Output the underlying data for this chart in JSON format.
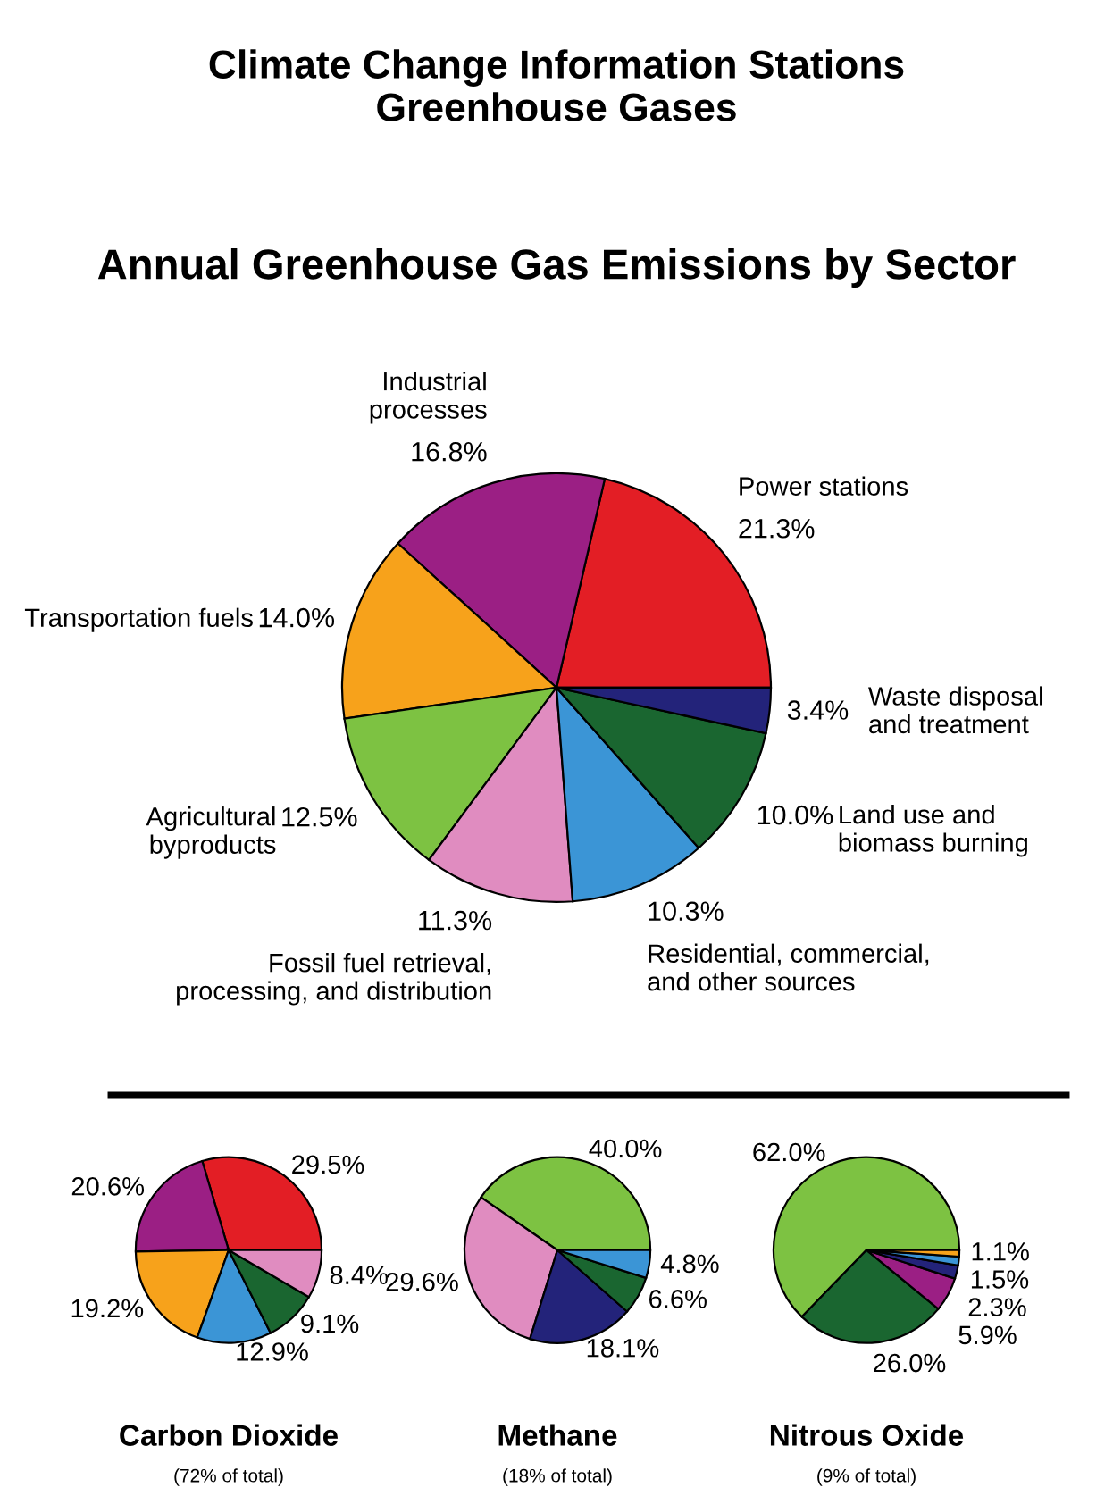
{
  "chart_data": [
    {
      "type": "pie",
      "title": "Climate Change Information Stations\nGreenhouse Gases",
      "subtitle": "Annual Greenhouse Gas Emissions by Sector",
      "categories": [
        "Power stations",
        "Industrial\nprocesses",
        "Transportation fuels",
        "Agricultural\nbyproducts",
        "Fossil fuel retrieval,\nprocessing, and distribution",
        "Residential, commercial,\nand other sources",
        "Land use and\nbiomass burning",
        "Waste disposal\nand treatment"
      ],
      "values": [
        21.3,
        16.8,
        14.0,
        12.5,
        11.3,
        10.3,
        10.0,
        3.4
      ],
      "value_labels": [
        "21.3%",
        "16.8%",
        "14.0%",
        "12.5%",
        "11.3%",
        "10.3%",
        "10.0%",
        "3.4%"
      ],
      "colors": [
        "#e31e25",
        "#9b1f84",
        "#f7a21b",
        "#7dc242",
        "#e08cc0",
        "#3b95d6",
        "#1a6630",
        "#23237a"
      ]
    },
    {
      "type": "pie",
      "title": "Carbon Dioxide",
      "subtitle": "(72% of total)",
      "categories": [
        null,
        null,
        null,
        null,
        null,
        null
      ],
      "values": [
        29.5,
        20.6,
        19.2,
        12.9,
        9.1,
        8.4
      ],
      "value_labels": [
        "29.5%",
        "20.6%",
        "19.2%",
        "12.9%",
        "9.1%",
        "8.4%"
      ],
      "colors": [
        "#e31e25",
        "#9b1f84",
        "#f7a21b",
        "#3b95d6",
        "#1a6630",
        "#e08cc0"
      ]
    },
    {
      "type": "pie",
      "title": "Methane",
      "subtitle": "(18% of total)",
      "categories": [
        null,
        null,
        null,
        null,
        null
      ],
      "values": [
        40.0,
        29.6,
        18.1,
        6.6,
        4.8
      ],
      "value_labels": [
        "40.0%",
        "29.6%",
        "18.1%",
        "6.6%",
        "4.8%"
      ],
      "colors": [
        "#7dc242",
        "#e08cc0",
        "#23237a",
        "#1a6630",
        "#3b95d6"
      ]
    },
    {
      "type": "pie",
      "title": "Nitrous Oxide",
      "subtitle": "(9% of total)",
      "categories": [
        null,
        null,
        null,
        null,
        null,
        null
      ],
      "values": [
        62.0,
        26.0,
        5.9,
        2.3,
        1.5,
        1.1
      ],
      "value_labels": [
        "62.0%",
        "26.0%",
        "5.9%",
        "2.3%",
        "1.5%",
        "1.1%"
      ],
      "colors": [
        "#7dc242",
        "#1a6630",
        "#9b1f84",
        "#23237a",
        "#3b95d6",
        "#f7a21b"
      ]
    }
  ]
}
